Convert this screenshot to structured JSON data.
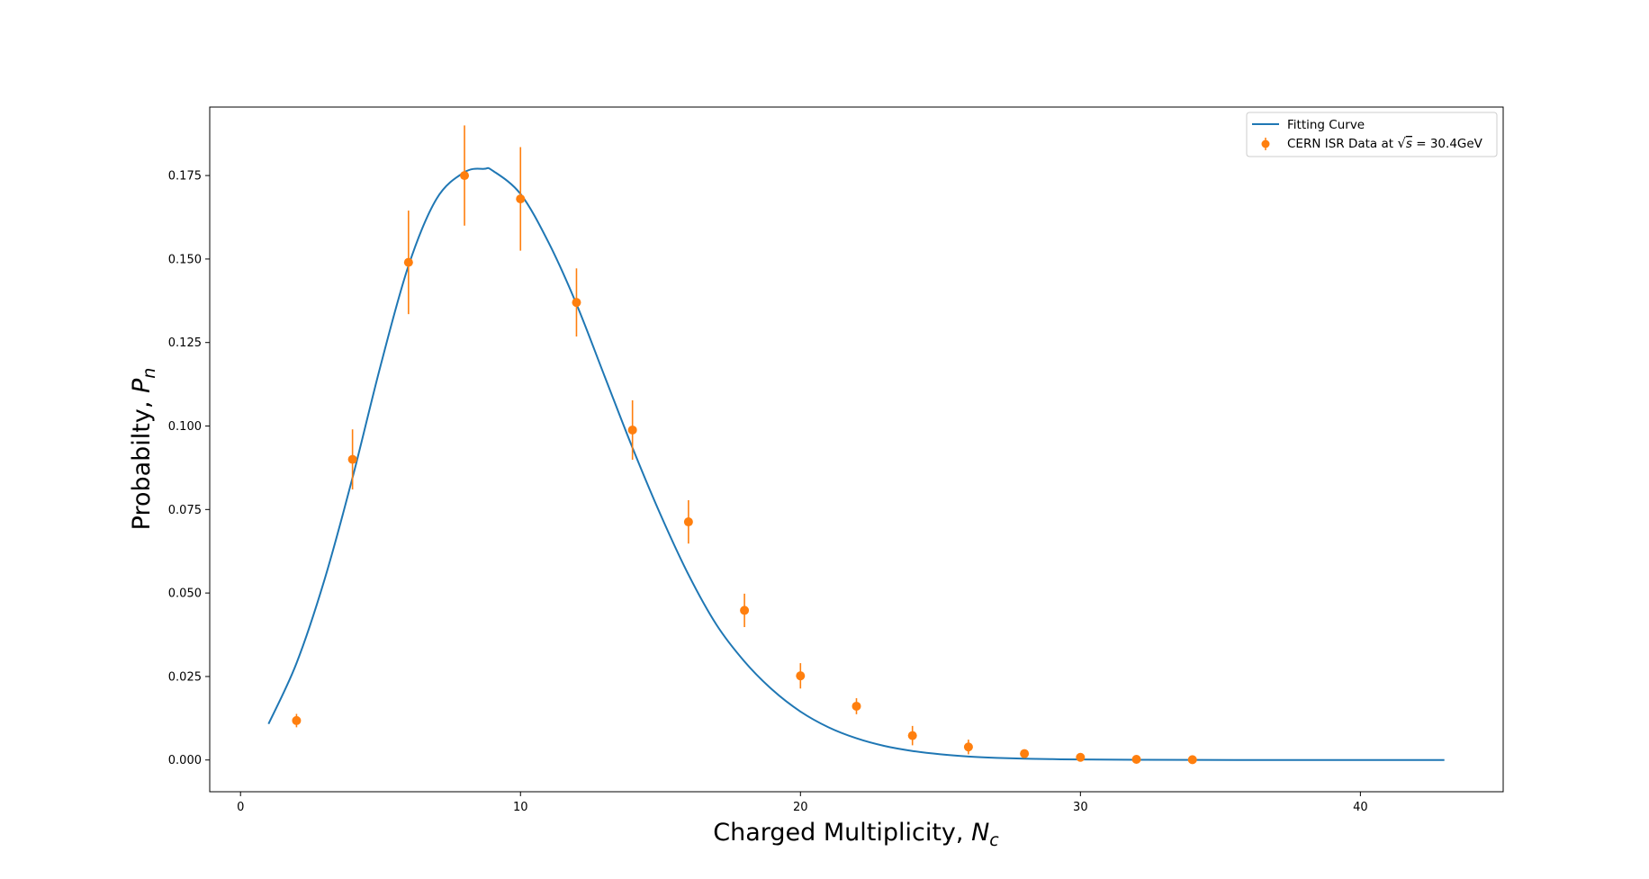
{
  "chart_data": {
    "type": "scatter",
    "title": "",
    "xlabel": "Charged Multiplicity, ",
    "xlabel_symbol": "N",
    "xlabel_sub": "c",
    "ylabel": "Probabilty, ",
    "ylabel_symbol": "P",
    "ylabel_sub": "n",
    "xlim": [
      -1.1,
      45.1
    ],
    "ylim": [
      -0.0095,
      0.1955
    ],
    "xticks": [
      0,
      10,
      20,
      30,
      40
    ],
    "xtick_labels": [
      "0",
      "10",
      "20",
      "30",
      "40"
    ],
    "yticks": [
      0,
      0.025,
      0.05,
      0.075,
      0.1,
      0.125,
      0.15,
      0.175
    ],
    "ytick_labels": [
      "0.000",
      "0.025",
      "0.050",
      "0.075",
      "0.100",
      "0.125",
      "0.150",
      "0.175"
    ],
    "grid": false,
    "legend_position": "top-right",
    "legend": {
      "curve_label": "Fitting Curve",
      "data_label_prefix": "CERN ISR Data at ",
      "data_label_suffix": " = 30.4GeV",
      "data_label_sqrt": "s"
    },
    "colors": {
      "curve": "#1f77b4",
      "points": "#ff7f0e"
    },
    "series": [
      {
        "name": "Fitting Curve",
        "kind": "line",
        "x": [
          1,
          2,
          3,
          4,
          5,
          6,
          7,
          8,
          8.7,
          9,
          10,
          11,
          12,
          13,
          14,
          15,
          16,
          17,
          18,
          19,
          20,
          21,
          22,
          23,
          24,
          25,
          26,
          27,
          28,
          29,
          30,
          32,
          34,
          36,
          38,
          40,
          43
        ],
        "y": [
          0.0108,
          0.029,
          0.054,
          0.0845,
          0.118,
          0.148,
          0.168,
          0.176,
          0.177,
          0.1765,
          0.1695,
          0.155,
          0.1365,
          0.115,
          0.0935,
          0.0735,
          0.0555,
          0.0405,
          0.0295,
          0.021,
          0.0145,
          0.0098,
          0.0065,
          0.0042,
          0.0027,
          0.0017,
          0.00105,
          0.00065,
          0.0004,
          0.00025,
          0.00015,
          6e-05,
          2e-05,
          8e-06,
          3e-06,
          1e-06,
          0.0
        ]
      },
      {
        "name": "CERN ISR Data at √s = 30.4GeV",
        "kind": "errorbar",
        "x": [
          2,
          4,
          6,
          8,
          10,
          12,
          14,
          16,
          18,
          20,
          22,
          24,
          26,
          28,
          30,
          32,
          34
        ],
        "y": [
          0.0118,
          0.09,
          0.149,
          0.175,
          0.168,
          0.137,
          0.0988,
          0.0713,
          0.0448,
          0.0252,
          0.0161,
          0.0073,
          0.0039,
          0.0019,
          0.0008,
          0.0002,
          0.0001
        ],
        "yerr": [
          0.002,
          0.009,
          0.0155,
          0.015,
          0.0155,
          0.0102,
          0.0089,
          0.0065,
          0.005,
          0.0038,
          0.0024,
          0.0029,
          0.0022,
          0.0008,
          0.0004,
          0.0002,
          0.0001
        ]
      }
    ]
  }
}
